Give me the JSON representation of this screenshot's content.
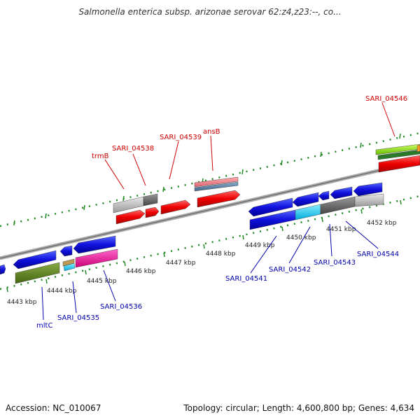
{
  "title": "Salmonella enterica subsp. arizonae serovar 62:z4,z23:--, co...",
  "footer": {
    "accession": "Accession: NC_010067",
    "stats": "Topology: circular; Length: 4,600,800 bp; Genes: 4,634"
  },
  "kbp_labels": {
    "k4443": "4443 kbp",
    "k4444": "4444 kbp",
    "k4445": "4445 kbp",
    "k4446": "4446 kbp",
    "k4447": "4447 kbp",
    "k4448": "4448 kbp",
    "k4449": "4449 kbp",
    "k4450": "4450 kbp",
    "k4451": "4451 kbp",
    "k4452": "4452 kbp"
  },
  "gene_labels": {
    "trmB": "trmB",
    "sari04538": "SARI_04538",
    "sari04539": "SARI_04539",
    "ansB": "ansB",
    "sari04546": "SARI_04546",
    "mltC": "mltC",
    "sari04535": "SARI_04535",
    "sari04536": "SARI_04536",
    "sari04541": "SARI_04541",
    "sari04542": "SARI_04542",
    "sari04543": "SARI_04543",
    "sari04544": "SARI_04544"
  },
  "colors": {
    "forward_gene": "#ee1111",
    "reverse_gene": "#1111dd",
    "backbone": "#888888",
    "tick": "#228822",
    "label_red": "#cc0000",
    "label_blue": "#0000aa"
  }
}
